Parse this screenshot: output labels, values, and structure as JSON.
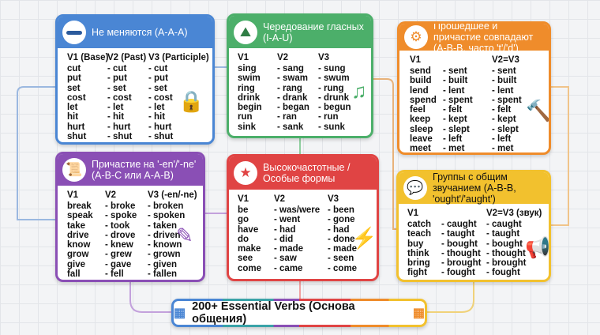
{
  "colors": {
    "blue": "#4a86d4",
    "green": "#4caf6a",
    "orange": "#ef8c2b",
    "purple": "#8a4fb5",
    "red": "#e04444",
    "yellow": "#f2c12e"
  },
  "cards": [
    {
      "key": "aaa",
      "title": "Не меняются (A-A-A)",
      "icon": "minus-icon",
      "side_icon": "lock-icon",
      "headers": [
        "V1 (Base)",
        "V2 (Past)",
        "V3 (Participle)"
      ],
      "rows": [
        [
          "cut",
          "- cut",
          "- cut"
        ],
        [
          "put",
          "- put",
          "- put"
        ],
        [
          "set",
          "- set",
          "- set"
        ],
        [
          "cost",
          "- cost",
          "- cost"
        ],
        [
          "let",
          "- let",
          "- let"
        ],
        [
          "hit",
          "- hit",
          "- hit"
        ],
        [
          "hurt",
          "- hurt",
          "- hurt"
        ],
        [
          "shut",
          "- shut",
          "- shut"
        ]
      ]
    },
    {
      "key": "iau",
      "title": "Чередование гласных (I-A-U)",
      "icon": "mountain-wave-icon",
      "side_icon": "music-note-icon",
      "headers": [
        "V1",
        "V2",
        "V3"
      ],
      "rows": [
        [
          "sing",
          "- sang",
          "- sung"
        ],
        [
          "swim",
          "- swam",
          "- swum"
        ],
        [
          "ring",
          "- rang",
          "- rung"
        ],
        [
          "drink",
          "- drank",
          "- drunk"
        ],
        [
          "begin",
          "- began",
          "- begun"
        ],
        [
          "run",
          "- ran",
          "- run"
        ],
        [
          "sink",
          "- sank",
          "- sunk"
        ]
      ]
    },
    {
      "key": "abb",
      "title": "Прошедшее и причастие совпадают (A-B-B, часто 't'/'d')",
      "icon": "gears-icon",
      "side_icon": "hammer-icon",
      "headers": [
        "V1",
        "",
        "V2=V3"
      ],
      "rows": [
        [
          "send",
          "- sent",
          "- sent"
        ],
        [
          "build",
          "- built",
          "- built"
        ],
        [
          "lend",
          "- lent",
          "- lent"
        ],
        [
          "spend",
          "- spent",
          "- spent"
        ],
        [
          "feel",
          "- felt",
          "- felt"
        ],
        [
          "keep",
          "- kept",
          "- kept"
        ],
        [
          "sleep",
          "- slept",
          "- slept"
        ],
        [
          "leave",
          "- left",
          "- left"
        ],
        [
          "meet",
          "- met",
          "- met"
        ]
      ]
    },
    {
      "key": "en",
      "title": "Причастие на '-en'/'-ne' (A-B-C или A-A-B)",
      "icon": "scroll-icon",
      "side_icon": "pen-icon",
      "headers": [
        "V1",
        "V2",
        "V3 (-en/-ne)"
      ],
      "rows": [
        [
          "break",
          "- broke",
          "- broken"
        ],
        [
          "speak",
          "- spoke",
          "- spoken"
        ],
        [
          "take",
          "- took",
          "- taken"
        ],
        [
          "drive",
          "- drove",
          "- driven"
        ],
        [
          "know",
          "- knew",
          "- known"
        ],
        [
          "grow",
          "- grew",
          "- grown"
        ],
        [
          "give",
          "- gave",
          "- given"
        ],
        [
          "fall",
          "- fell",
          "- fallen"
        ]
      ]
    },
    {
      "key": "freq",
      "title": "Высокочастотные / Особые формы",
      "icon": "star-arrow-icon",
      "side_icon": "lightning-icon",
      "headers": [
        "V1",
        "V2",
        "V3"
      ],
      "rows": [
        [
          "be",
          "- was/were",
          "- been"
        ],
        [
          "go",
          "- went",
          "- gone"
        ],
        [
          "have",
          "- had",
          "- had"
        ],
        [
          "do",
          "- did",
          "- done"
        ],
        [
          "make",
          "- made",
          "- made"
        ],
        [
          "see",
          "- saw",
          "- seen"
        ],
        [
          "come",
          "- came",
          "- come"
        ]
      ]
    },
    {
      "key": "ought",
      "title": "Группы с общим звучанием (A-B-B, 'ought'/'aught')",
      "icon": "speech-bubble-icon",
      "side_icon": "megaphone-icon",
      "headers": [
        "V1",
        "",
        "V2=V3 (звук)"
      ],
      "rows": [
        [
          "catch",
          "- caught",
          "- caught"
        ],
        [
          "teach",
          "- taught",
          "- taught"
        ],
        [
          "buy",
          "- bought",
          "- bought"
        ],
        [
          "think",
          "- thought",
          "- thought"
        ],
        [
          "bring",
          "- brought",
          "- brought"
        ],
        [
          "fight",
          "- fought",
          "- fought"
        ]
      ]
    }
  ],
  "footer": {
    "title": "200+ Essential Verbs (Основа общения)",
    "left_icon": "blue-blocks-icon",
    "right_icon": "orange-blocks-icon"
  }
}
